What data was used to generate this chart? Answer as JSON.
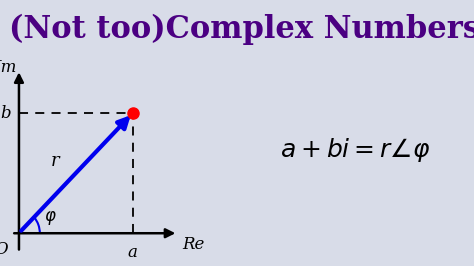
{
  "title": "(Not too)Complex Numbers?",
  "title_color": "#4B0082",
  "title_fontsize": 22,
  "bg_color": "#D8DCE8",
  "diagram_bg": "#D8DCE8",
  "axes_color": "#000000",
  "arrow_color": "#0000EE",
  "point_color": "#FF0000",
  "dashed_color": "#000000",
  "point_x": 3.0,
  "point_y": 2.2,
  "origin_x": 0.0,
  "origin_y": 0.0,
  "label_Im": "Im",
  "label_Re": "Re",
  "label_O": "O",
  "label_a": "a",
  "label_b": "b",
  "label_r": "r",
  "xlim": [
    -0.5,
    6.0
  ],
  "ylim": [
    -0.6,
    3.2
  ]
}
